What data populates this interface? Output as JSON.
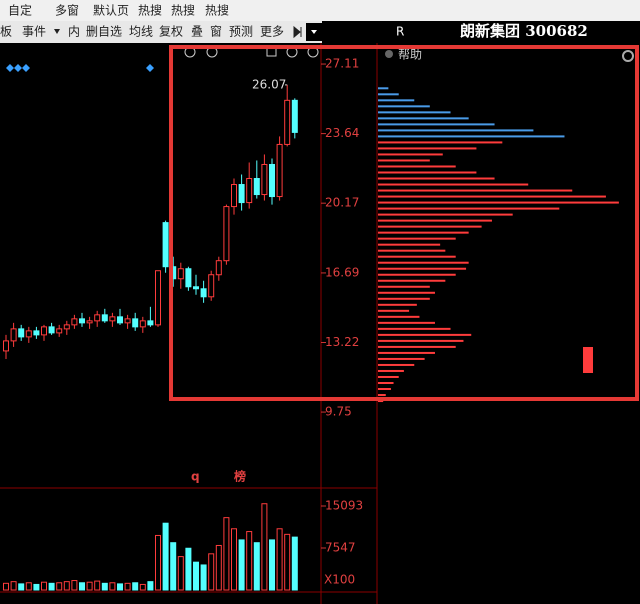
{
  "menu": [
    "自定",
    "多窗",
    "默认页",
    "热搜",
    "热搜",
    "热搜"
  ],
  "toolbar": [
    "板",
    "事件",
    "内",
    "删自选",
    "均线",
    "复权",
    "叠",
    "窗",
    "预测",
    "更多"
  ],
  "header": {
    "mark": "R",
    "title": "朗新集团 300682"
  },
  "panel": {
    "help": "帮助"
  },
  "chart_data": {
    "type": "candlestick",
    "open": [
      12.8,
      13.3,
      13.9,
      13.5,
      13.8,
      13.6,
      14.0,
      13.7,
      13.9,
      14.1,
      14.4,
      14.2,
      14.3,
      14.6,
      14.3,
      14.5,
      14.2,
      14.4,
      14.0,
      14.3,
      14.1,
      19.2,
      17.0,
      16.4,
      16.9,
      16.0,
      15.9,
      15.5,
      16.6,
      17.3,
      20.0,
      21.1,
      20.2,
      21.4,
      20.6,
      22.1,
      20.5,
      23.1,
      25.3
    ],
    "high": [
      13.6,
      14.2,
      14.1,
      14.0,
      14.0,
      14.1,
      14.2,
      14.1,
      14.3,
      14.6,
      14.7,
      14.5,
      14.8,
      14.9,
      14.7,
      14.9,
      14.6,
      14.7,
      14.5,
      15.0,
      16.8,
      19.3,
      17.5,
      17.2,
      17.0,
      16.6,
      16.3,
      16.8,
      17.5,
      20.1,
      21.4,
      21.6,
      22.2,
      22.3,
      22.6,
      22.4,
      23.5,
      26.07,
      25.4
    ],
    "low": [
      12.4,
      13.0,
      13.3,
      13.2,
      13.4,
      13.3,
      13.6,
      13.5,
      13.6,
      13.9,
      14.0,
      13.9,
      14.0,
      14.2,
      14.0,
      14.1,
      13.9,
      13.8,
      13.7,
      14.0,
      14.0,
      16.7,
      16.0,
      15.9,
      15.8,
      15.6,
      15.2,
      15.3,
      16.3,
      17.1,
      19.6,
      19.8,
      19.9,
      20.4,
      20.3,
      20.1,
      20.3,
      23.0,
      23.4
    ],
    "close": [
      13.3,
      13.9,
      13.5,
      13.8,
      13.6,
      14.0,
      13.7,
      13.9,
      14.1,
      14.4,
      14.2,
      14.3,
      14.6,
      14.3,
      14.5,
      14.2,
      14.4,
      14.0,
      14.3,
      14.1,
      16.8,
      17.0,
      16.4,
      16.9,
      16.0,
      15.9,
      15.5,
      16.6,
      17.3,
      20.0,
      21.1,
      20.2,
      21.4,
      20.6,
      22.1,
      20.5,
      23.1,
      25.3,
      23.7
    ],
    "up_color": "#ff3c3c",
    "down_color": "#54ffff",
    "ylim": [
      6.86,
      28.01
    ],
    "yticks": [
      27.11,
      23.64,
      20.17,
      16.69,
      13.22,
      9.75
    ],
    "annotation": 26.07,
    "markers": [
      "q",
      "榜"
    ],
    "volume": [
      1200,
      1500,
      1100,
      1300,
      1000,
      1400,
      1200,
      1300,
      1500,
      1700,
      1300,
      1400,
      1600,
      1200,
      1300,
      1100,
      1200,
      1300,
      1000,
      1500,
      9800,
      12000,
      8500,
      6000,
      7500,
      5000,
      4500,
      6500,
      8000,
      13000,
      11000,
      9000,
      10500,
      8500,
      15500,
      9000,
      11000,
      10000,
      9500
    ],
    "volume_ylim": [
      0,
      18327
    ],
    "volume_yticks": [
      15093,
      7547
    ],
    "volume_unit": "X100",
    "profile_red": {
      "color": "#ff3c3c",
      "prices": [
        10.3,
        10.6,
        10.9,
        11.2,
        11.5,
        11.8,
        12.1,
        12.4,
        12.7,
        13.0,
        13.3,
        13.6,
        13.9,
        14.2,
        14.5,
        14.8,
        15.1,
        15.4,
        15.7,
        16.0,
        16.3,
        16.6,
        16.9,
        17.2,
        17.5,
        17.8,
        18.1,
        18.4,
        18.7,
        19.0,
        19.3,
        19.6,
        19.9,
        20.2,
        20.5,
        20.8,
        21.1,
        21.4,
        21.7,
        22.0,
        22.3,
        22.6,
        22.9,
        23.2
      ],
      "values": [
        2,
        3,
        5,
        6,
        8,
        10,
        14,
        18,
        22,
        30,
        33,
        36,
        28,
        22,
        16,
        12,
        15,
        20,
        22,
        20,
        26,
        30,
        34,
        35,
        30,
        26,
        24,
        30,
        35,
        40,
        44,
        52,
        70,
        93,
        88,
        75,
        58,
        45,
        38,
        30,
        20,
        25,
        38,
        48
      ]
    },
    "profile_blue": {
      "color": "#4a9be8",
      "prices": [
        23.5,
        23.8,
        24.1,
        24.4,
        24.7,
        25.0,
        25.3,
        25.6,
        25.9
      ],
      "values": [
        72,
        60,
        45,
        35,
        28,
        20,
        14,
        8,
        4
      ]
    },
    "profile_xlim": [
      0,
      100
    ]
  }
}
